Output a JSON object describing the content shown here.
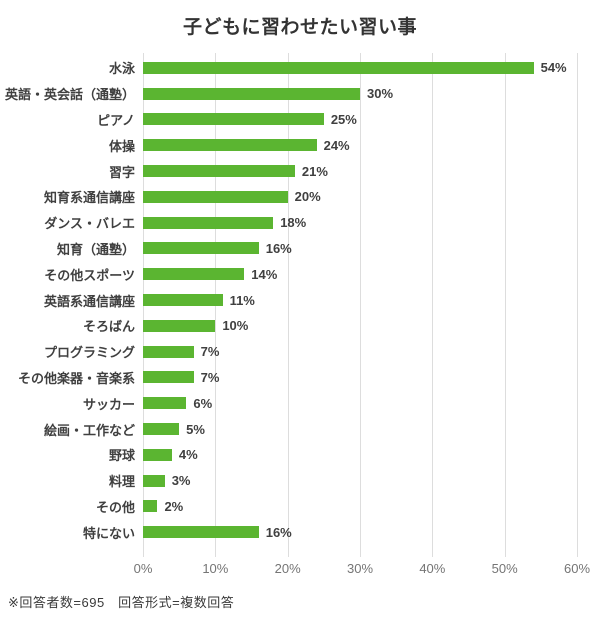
{
  "title": "子どもに習わせたい習い事",
  "footnote": "※回答者数=695　回答形式=複数回答",
  "colors": {
    "bar": "#5bb531",
    "gridline": "#dddddd",
    "title_text": "#333333",
    "label_text": "#404040",
    "tick_text": "#757575"
  },
  "chart_data": {
    "type": "bar",
    "orientation": "horizontal",
    "title": "子どもに習わせたい習い事",
    "xlabel": "",
    "ylabel": "",
    "xlim": [
      0,
      60
    ],
    "x_ticks": [
      "0%",
      "10%",
      "20%",
      "30%",
      "40%",
      "50%",
      "60%"
    ],
    "grid": "vertical-only",
    "legend": "none",
    "categories": [
      "水泳",
      "英語・英会話（通塾）",
      "ピアノ",
      "体操",
      "習字",
      "知育系通信講座",
      "ダンス・バレエ",
      "知育（通塾）",
      "その他スポーツ",
      "英語系通信講座",
      "そろばん",
      "プログラミング",
      "その他楽器・音楽系",
      "サッカー",
      "絵画・工作など",
      "野球",
      "料理",
      "その他",
      "特にない"
    ],
    "values": [
      54,
      30,
      25,
      24,
      21,
      20,
      18,
      16,
      14,
      11,
      10,
      7,
      7,
      6,
      5,
      4,
      3,
      2,
      16
    ],
    "value_labels": [
      "54%",
      "30%",
      "25%",
      "24%",
      "21%",
      "20%",
      "18%",
      "16%",
      "14%",
      "11%",
      "10%",
      "7%",
      "7%",
      "6%",
      "5%",
      "4%",
      "3%",
      "2%",
      "16%"
    ]
  }
}
